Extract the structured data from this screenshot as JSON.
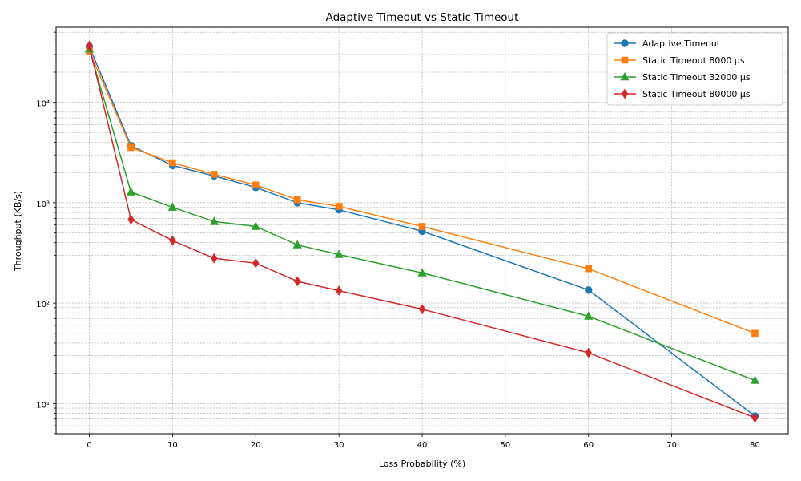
{
  "chart_data": {
    "type": "line",
    "title": "Adaptive Timeout vs Static Timeout",
    "xlabel": "Loss Probability (%)",
    "ylabel": "Throughput (KB/s)",
    "xlim": [
      -4,
      84
    ],
    "ylim": [
      5,
      56000
    ],
    "yscale": "log",
    "xticks": [
      0,
      10,
      20,
      30,
      40,
      50,
      60,
      70,
      80
    ],
    "xtick_labels": [
      "0",
      "10",
      "20",
      "30",
      "40",
      "50",
      "60",
      "70",
      "80"
    ],
    "yticks": [
      10,
      100,
      1000,
      10000
    ],
    "ytick_labels": [
      "10¹",
      "10²",
      "10³",
      "10⁴"
    ],
    "grid": true,
    "legend_position": "top-right",
    "x": [
      0,
      5,
      10,
      15,
      20,
      25,
      30,
      40,
      60,
      80
    ],
    "series": [
      {
        "name": "Adaptive Timeout",
        "color": "#1f77b4",
        "marker": "circle",
        "values": [
          36000,
          3700,
          2350,
          1850,
          1420,
          1000,
          850,
          520,
          135,
          7.5
        ]
      },
      {
        "name": "Static Timeout 8000 µs",
        "color": "#ff7f0e",
        "marker": "square",
        "values": [
          32500,
          3550,
          2500,
          1920,
          1500,
          1070,
          920,
          580,
          220,
          50
        ]
      },
      {
        "name": "Static Timeout 32000 µs",
        "color": "#2ca02c",
        "marker": "triangle",
        "values": [
          34000,
          1280,
          900,
          650,
          580,
          380,
          305,
          200,
          74,
          17
        ]
      },
      {
        "name": "Static Timeout 80000 µs",
        "color": "#d62728",
        "marker": "diamond",
        "values": [
          36500,
          680,
          420,
          280,
          250,
          165,
          133,
          87,
          32,
          7.2
        ]
      }
    ]
  }
}
